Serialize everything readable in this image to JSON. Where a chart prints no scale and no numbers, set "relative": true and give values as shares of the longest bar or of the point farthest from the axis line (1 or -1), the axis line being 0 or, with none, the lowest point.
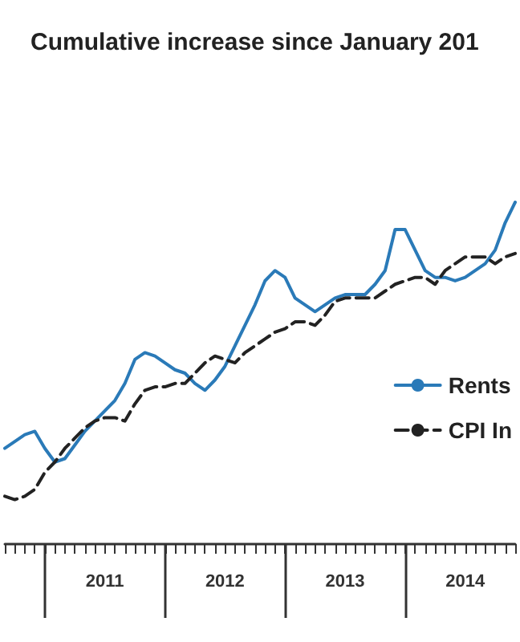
{
  "chart_data": {
    "type": "line",
    "title": "Cumulative increase since January 201",
    "relative": true,
    "categories": [
      null,
      null,
      null,
      null,
      null,
      null,
      null,
      null,
      null,
      null,
      "2011",
      null,
      null,
      null,
      null,
      null,
      null,
      null,
      null,
      null,
      null,
      null,
      "2012",
      null,
      null,
      null,
      null,
      null,
      null,
      null,
      null,
      null,
      null,
      null,
      "2013",
      null,
      null,
      null,
      null,
      null,
      null,
      null,
      null,
      null,
      null,
      null,
      "2014",
      null,
      null,
      null,
      null,
      null
    ],
    "series": [
      {
        "name": "Rents",
        "color": "#2a7ab8",
        "line_style": "solid",
        "values": [
          0.28,
          0.3,
          0.32,
          0.33,
          0.28,
          0.24,
          0.25,
          0.29,
          0.33,
          0.36,
          0.39,
          0.42,
          0.47,
          0.54,
          0.56,
          0.55,
          0.53,
          0.51,
          0.5,
          0.47,
          0.45,
          0.48,
          0.52,
          0.58,
          0.64,
          0.7,
          0.77,
          0.8,
          0.78,
          0.72,
          0.7,
          0.68,
          0.7,
          0.72,
          0.73,
          0.73,
          0.73,
          0.76,
          0.8,
          0.92,
          0.92,
          0.86,
          0.8,
          0.78,
          0.78,
          0.77,
          0.78,
          0.8,
          0.82,
          0.86,
          0.94,
          1
        ]
      },
      {
        "name": "CPI In",
        "color": "#222222",
        "line_style": "dashed",
        "values": [
          0.14,
          0.13,
          0.14,
          0.16,
          0.21,
          0.24,
          0.28,
          0.31,
          0.34,
          0.36,
          0.37,
          0.37,
          0.36,
          0.41,
          0.45,
          0.46,
          0.46,
          0.47,
          0.47,
          0.5,
          0.53,
          0.55,
          0.54,
          0.53,
          0.56,
          0.58,
          0.6,
          0.62,
          0.63,
          0.65,
          0.65,
          0.64,
          0.67,
          0.71,
          0.72,
          0.72,
          0.72,
          0.72,
          0.74,
          0.76,
          0.77,
          0.78,
          0.78,
          0.76,
          0.8,
          0.82,
          0.84,
          0.84,
          0.84,
          0.82,
          0.84,
          0.85
        ]
      }
    ],
    "marker": "none",
    "grid": false,
    "legend": "right"
  }
}
